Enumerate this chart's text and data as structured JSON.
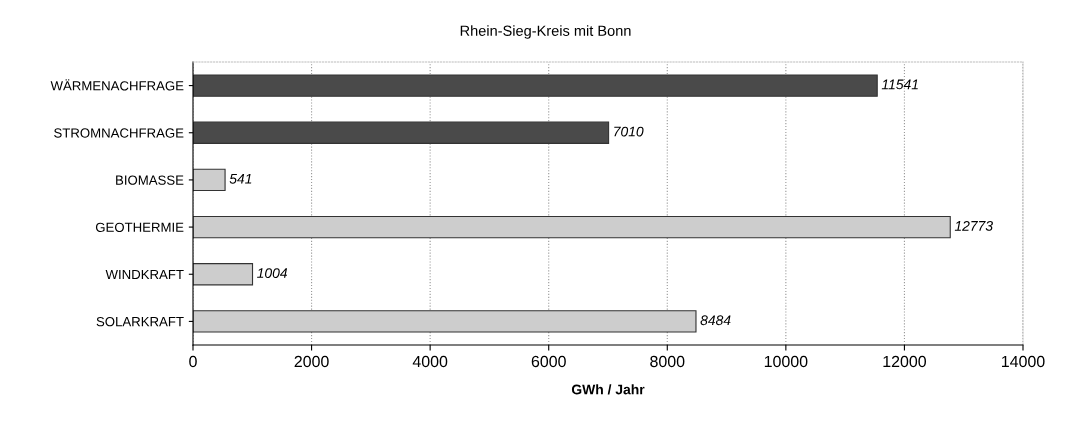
{
  "chart_data": {
    "type": "bar",
    "orientation": "horizontal",
    "title": "Rhein-Sieg-Kreis mit Bonn",
    "xlabel": "GWh / Jahr",
    "categories": [
      "WÄRMENACHFRAGE",
      "STROMNACHFRAGE",
      "BIOMASSE",
      "GEOTHERMIE",
      "WINDKRAFT",
      "SOLARKRAFT"
    ],
    "values": [
      11541,
      7010,
      541,
      12773,
      1004,
      8484
    ],
    "colors": [
      "#4a4a4a",
      "#4a4a4a",
      "#cdcdcd",
      "#cdcdcd",
      "#cdcdcd",
      "#cdcdcd"
    ],
    "xlim": [
      0,
      14000
    ],
    "xticks": [
      0,
      2000,
      4000,
      6000,
      8000,
      10000,
      12000,
      14000
    ],
    "grid": "x",
    "data_labels": true
  }
}
